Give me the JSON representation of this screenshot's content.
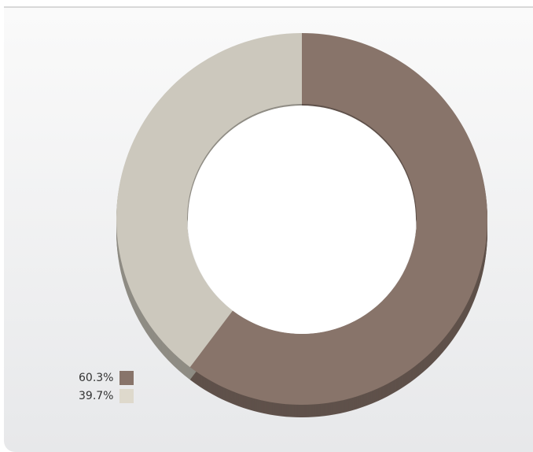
{
  "colors": {
    "primary": "#88746a",
    "secondary": "#ccc8bd",
    "panel_top": "#fafafa",
    "panel_bottom": "#e7e8ea"
  },
  "chart_data": {
    "type": "pie",
    "style": "donut",
    "labels": [
      "60.3%",
      "39.7%"
    ],
    "values": [
      60.3,
      39.7
    ],
    "colors": [
      "#88746a",
      "#ccc8bd"
    ],
    "legend_swatch_colors": [
      "#88746a",
      "#ded9cc"
    ],
    "legend_position": "bottom-left",
    "title": ""
  }
}
